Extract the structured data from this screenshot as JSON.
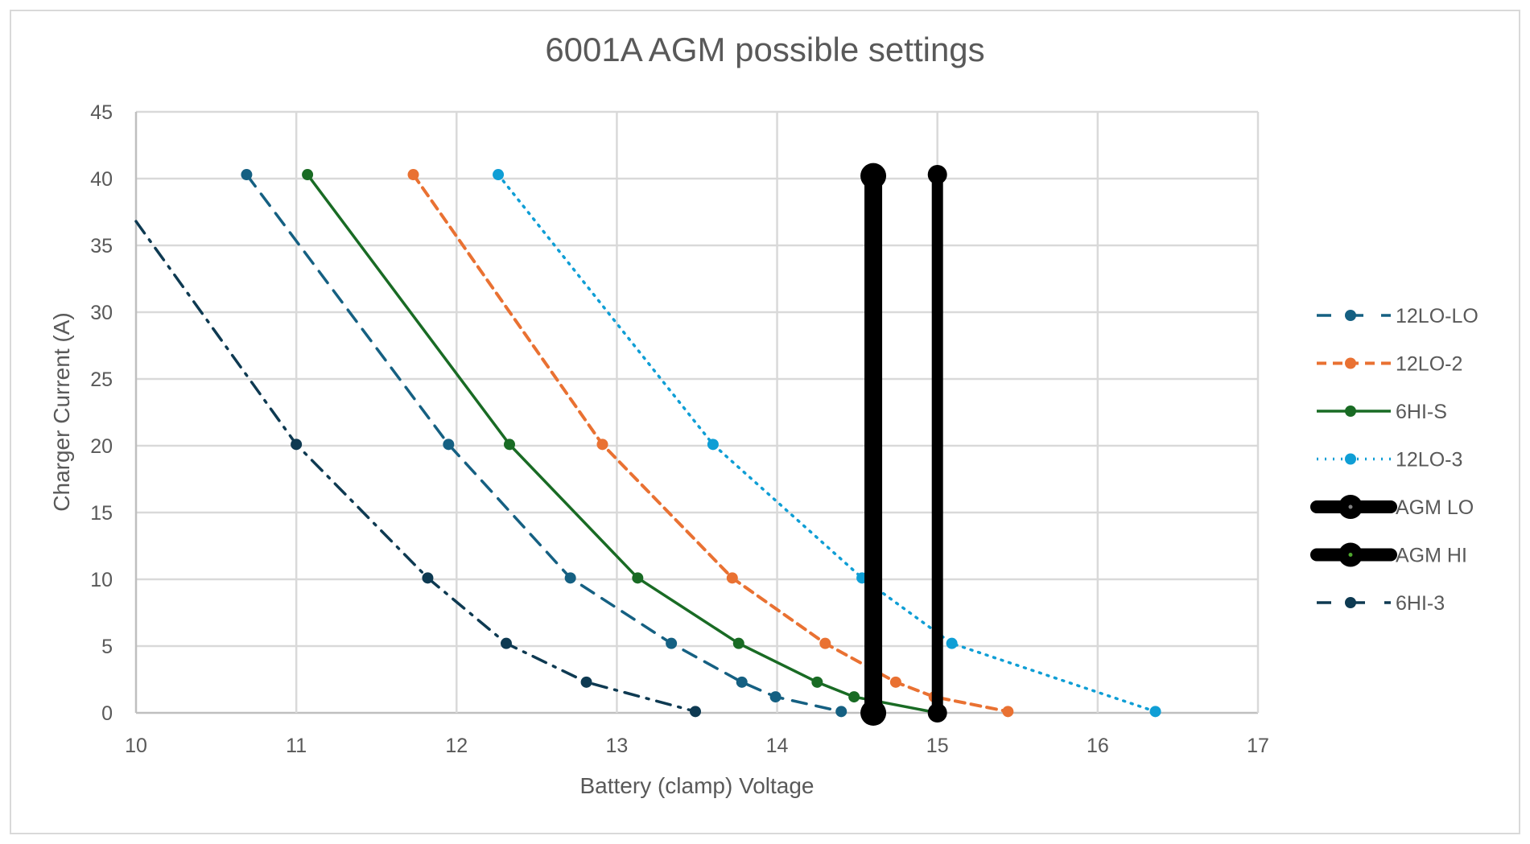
{
  "chart_data": {
    "type": "scatter",
    "title": "6001A AGM possible settings",
    "xlabel": "Battery (clamp) Voltage",
    "ylabel": "Charger Current (A)",
    "xlim": [
      10,
      17
    ],
    "ylim": [
      0,
      45
    ],
    "xticks": [
      10,
      11,
      12,
      13,
      14,
      15,
      16,
      17
    ],
    "yticks": [
      0,
      5,
      10,
      15,
      20,
      25,
      30,
      35,
      40,
      45
    ],
    "grid": true,
    "legend_position": "right",
    "series": [
      {
        "name": "12LO-LO",
        "color": "#156082",
        "dash": "18,12",
        "width": 3.5,
        "marker": 7,
        "x": [
          10.69,
          11.95,
          12.71,
          13.34,
          13.78,
          13.99,
          14.4
        ],
        "y": [
          40.3,
          20.1,
          10.1,
          5.2,
          2.3,
          1.2,
          0.1
        ]
      },
      {
        "name": "12LO-2",
        "color": "#E97132",
        "dash": "12,8",
        "width": 4,
        "marker": 7,
        "x": [
          11.73,
          12.91,
          13.72,
          14.3,
          14.74,
          14.98,
          15.44
        ],
        "y": [
          40.3,
          20.1,
          10.1,
          5.2,
          2.3,
          1.2,
          0.1
        ]
      },
      {
        "name": "6HI-S",
        "color": "#196B24",
        "dash": "",
        "width": 3.5,
        "marker": 7,
        "x": [
          11.07,
          12.33,
          13.13,
          13.76,
          14.25,
          14.48,
          15.0
        ],
        "y": [
          40.3,
          20.1,
          10.1,
          5.2,
          2.3,
          1.2,
          0.0
        ]
      },
      {
        "name": "12LO-3",
        "color": "#0F9ED5",
        "dash": "2,8",
        "width": 3.5,
        "marker": 7,
        "x": [
          12.26,
          13.6,
          14.53,
          15.09,
          16.36
        ],
        "y": [
          40.3,
          20.1,
          10.1,
          5.2,
          0.1
        ]
      },
      {
        "name": "AGM LO",
        "color": "#000000",
        "dash": "",
        "width": 22,
        "marker": 16,
        "x": [
          14.6,
          14.6
        ],
        "y": [
          40.2,
          0.0
        ]
      },
      {
        "name": "AGM HI",
        "color": "#000000",
        "dash": "",
        "width": 14,
        "marker": 12,
        "x": [
          15.0,
          15.0
        ],
        "y": [
          40.3,
          0.0
        ]
      },
      {
        "name": "6HI-3",
        "color": "#0E3A52",
        "dash": "18,10,3,10",
        "width": 3.5,
        "marker": 7,
        "x": [
          10.0,
          11.0,
          11.82,
          12.31,
          12.81,
          13.49
        ],
        "y": [
          36.8,
          20.1,
          10.1,
          5.2,
          2.3,
          0.1
        ]
      }
    ]
  }
}
